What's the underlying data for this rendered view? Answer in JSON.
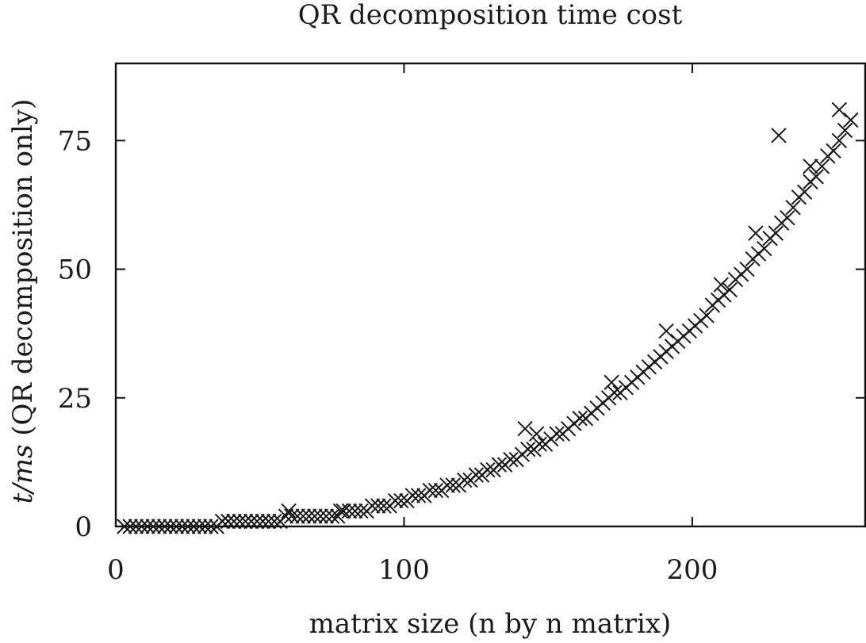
{
  "chart_data": {
    "type": "scatter",
    "title": "QR decomposition time cost",
    "xlabel": "matrix size (n by n matrix)",
    "ylabel_italic": "t/ms",
    "ylabel_rest": " (QR decomposition only)",
    "xlim": [
      0,
      260
    ],
    "ylim": [
      0,
      90
    ],
    "xticks": [
      0,
      100,
      200
    ],
    "xtick_labels": [
      "0",
      "100",
      "200"
    ],
    "yticks": [
      0,
      25,
      50,
      75
    ],
    "ytick_labels": [
      "0",
      "25",
      "50",
      "75"
    ],
    "marker": "x",
    "marker_color": "#1a1a1a",
    "grid": false,
    "series": [
      {
        "x": [
          3,
          5,
          7,
          9,
          11,
          13,
          15,
          17,
          19,
          21,
          23,
          25,
          27,
          29,
          31,
          33,
          35,
          37,
          39,
          41,
          43,
          45,
          47,
          49,
          51,
          53,
          55,
          57,
          59,
          61,
          63,
          65,
          67,
          69,
          71,
          73,
          75,
          77,
          79,
          81,
          83,
          85,
          87,
          89,
          91,
          93,
          95,
          97,
          99,
          101,
          103,
          105,
          107,
          109,
          111,
          113,
          115,
          117,
          119,
          121,
          123,
          125,
          127,
          129,
          131,
          133,
          135,
          137,
          139,
          141,
          143,
          145,
          147,
          149,
          151,
          153,
          155,
          157,
          159,
          161,
          163,
          165,
          167,
          169,
          171,
          173,
          175,
          177,
          179,
          181,
          183,
          185,
          187,
          189,
          191,
          193,
          195,
          197,
          199,
          201,
          203,
          205,
          207,
          209,
          211,
          213,
          215,
          217,
          219,
          221,
          223,
          225,
          227,
          229,
          231,
          233,
          235,
          237,
          239,
          241,
          243,
          245,
          247,
          249,
          251,
          253,
          255,
          60,
          78,
          142,
          146,
          172,
          191,
          210,
          222,
          230,
          241,
          251
        ],
        "y": [
          0,
          0,
          0,
          0,
          0,
          0,
          0,
          0,
          0,
          0,
          0,
          0,
          0,
          0,
          0,
          0,
          0,
          1,
          1,
          1,
          1,
          1,
          1,
          1,
          1,
          1,
          1,
          1,
          2,
          2,
          2,
          2,
          2,
          2,
          2,
          2,
          2,
          2,
          3,
          3,
          3,
          3,
          3,
          4,
          4,
          4,
          4,
          5,
          5,
          5,
          6,
          6,
          6,
          7,
          7,
          7,
          8,
          8,
          8,
          9,
          9,
          10,
          10,
          11,
          11,
          12,
          12,
          13,
          13,
          14,
          15,
          15,
          16,
          16,
          17,
          18,
          18,
          19,
          20,
          21,
          21,
          22,
          23,
          24,
          25,
          26,
          26,
          27,
          28,
          29,
          30,
          31,
          32,
          33,
          34,
          35,
          36,
          37,
          38,
          39,
          40,
          41,
          43,
          44,
          45,
          46,
          48,
          49,
          50,
          52,
          53,
          54,
          56,
          57,
          59,
          60,
          62,
          64,
          65,
          67,
          68,
          70,
          72,
          73,
          75,
          77,
          79,
          3,
          3,
          19,
          18,
          28,
          38,
          47,
          57,
          76,
          70,
          81
        ]
      }
    ]
  }
}
